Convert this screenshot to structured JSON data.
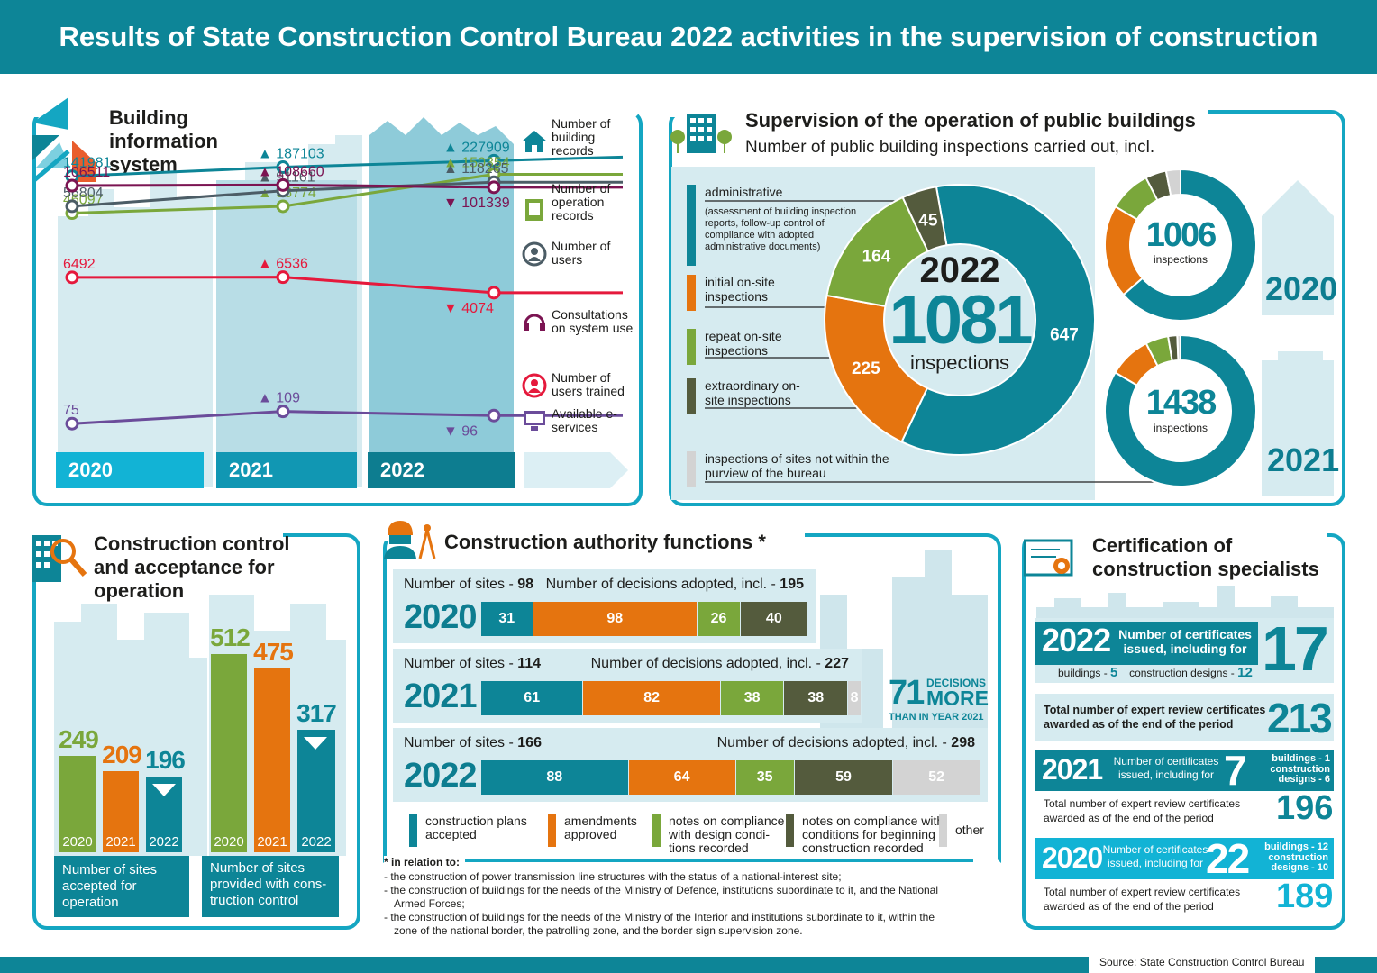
{
  "title": "Results of State Construction Control Bureau 2022 activities in the supervision of construction",
  "colors": {
    "teal": "#0d8597",
    "cyan": "#14a6c2",
    "orange": "#e5740f",
    "green": "#7aa73b",
    "dark": "#545b3d",
    "gray": "#d3d3d3",
    "magenta": "#7b1452",
    "slate": "#4c5d66",
    "red": "#e5193c",
    "purple": "#6b4c9a"
  },
  "bis": {
    "heading": "Building information system",
    "years": [
      "2020",
      "2021",
      "2022"
    ],
    "series": [
      {
        "name": "Number of building records",
        "icon": "house-icon",
        "values": [
          141981,
          187103,
          227909
        ],
        "labels": [
          "141981",
          "187103",
          "227909"
        ],
        "arrows": [
          "",
          "up",
          "up"
        ]
      },
      {
        "name": "Number of operation records",
        "icon": "book-icon",
        "values": [
          46097,
          56774,
          150354
        ],
        "labels": [
          "46097",
          "56774",
          "150354"
        ],
        "arrows": [
          "",
          "up",
          "up"
        ]
      },
      {
        "name": "Number of users",
        "icon": "user-icon",
        "values": [
          56804,
          91161,
          118265
        ],
        "labels": [
          "56804",
          "91161",
          "118265"
        ],
        "arrows": [
          "",
          "up",
          "up"
        ]
      },
      {
        "name": "Consultations on system use",
        "icon": "headset-icon",
        "values": [
          106511,
          108660,
          101339
        ],
        "labels": [
          "106511",
          "108660",
          "101339"
        ],
        "arrows": [
          "",
          "up",
          "down"
        ]
      },
      {
        "name": "Number of users trained",
        "icon": "trainee-icon",
        "values": [
          6492,
          6536,
          4074
        ],
        "labels": [
          "6492",
          "6536",
          "4074"
        ],
        "arrows": [
          "",
          "up",
          "down"
        ]
      },
      {
        "name": "Available e-services",
        "icon": "monitor-icon",
        "values": [
          75,
          109,
          96
        ],
        "labels": [
          "75",
          "109",
          "96"
        ],
        "arrows": [
          "",
          "up",
          "down"
        ]
      }
    ]
  },
  "pub": {
    "heading": "Supervision of the operation of public buildings",
    "subheading": "Number of public building inspections carried out, incl.",
    "year": "2022",
    "total": "1081",
    "unit": "inspections",
    "cats": [
      {
        "label": "administrative",
        "sub": "(assessment of building inspection reports, follow-up control of compliance with adopted administrative documents)",
        "value": 647
      },
      {
        "label": "initial on-site inspections",
        "value": 225
      },
      {
        "label": "repeat on-site inspections",
        "value": 164
      },
      {
        "label": "extraordinary on-site inspections",
        "value": 45
      },
      {
        "label": "inspections of sites not within the purview of the bureau",
        "value": 0
      }
    ],
    "small": [
      {
        "year": "2020",
        "total": "1006",
        "unit": "inspections",
        "values": [
          640,
          200,
          90,
          45,
          31
        ]
      },
      {
        "year": "2021",
        "total": "1438",
        "unit": "inspections",
        "values": [
          1200,
          130,
          70,
          28,
          10
        ]
      }
    ]
  },
  "ccao": {
    "heading": "Construction control and acceptance for operation",
    "groups": [
      {
        "caption": "Number of sites accepted for operation",
        "years": [
          "2020",
          "2021",
          "2022"
        ],
        "values": [
          249,
          209,
          196
        ],
        "labels": [
          "249",
          "209",
          "196"
        ],
        "arrow": "down"
      },
      {
        "caption": "Number of sites provided with cons-truction control",
        "years": [
          "2020",
          "2021",
          "2022"
        ],
        "values": [
          512,
          475,
          317
        ],
        "labels": [
          "512",
          "475",
          "317"
        ],
        "arrow": "down"
      }
    ]
  },
  "caf": {
    "heading": "Construction authority functions *",
    "sites_label": "Number of sites - ",
    "dec_label": "Number of decisions adopted, incl. - ",
    "rows": [
      {
        "year": "2020",
        "sites": "98",
        "decisions": "195",
        "values": [
          31,
          98,
          26,
          40,
          0
        ]
      },
      {
        "year": "2021",
        "sites": "114",
        "decisions": "227",
        "values": [
          61,
          82,
          38,
          38,
          8
        ]
      },
      {
        "year": "2022",
        "sites": "166",
        "decisions": "298",
        "values": [
          88,
          64,
          35,
          59,
          52
        ]
      }
    ],
    "delta": {
      "num": "71",
      "word1": "DECISIONS",
      "word2": "MORE",
      "sub": "THAN IN YEAR 2021"
    },
    "legend": [
      "construction plans accepted",
      "amendments approved",
      "notes on compliance with design condi-tions recorded",
      "notes on compliance with conditions for beginning construction recorded",
      "other"
    ],
    "footnote_title": "* in relation to:",
    "footnotes": [
      "the construction of power transmission line structures with the status of a national-interest site;",
      "the construction of buildings for the needs of the Ministry of Defence, institutions subordinate to it, and the National Armed Forces;",
      "the construction of buildings for the needs of the Ministry of the Interior and institutions subordinate to it, within the zone of the national border, the patrolling zone, and the border sign supervision zone."
    ]
  },
  "cert": {
    "heading": "Certification of construction specialists",
    "y2022": {
      "year": "2022",
      "text": "Number of certificates issued, including for",
      "total": "17",
      "b_label": "buildings - ",
      "b": "5",
      "d_label": "construction designs - ",
      "d": "12",
      "review_text": "Total number of expert review certificates awarded as of the end of the period",
      "review": "213"
    },
    "y2021": {
      "year": "2021",
      "text": "Number of certificates issued, including for",
      "total": "7",
      "b": "buildings - 1",
      "d": "construction designs - 6",
      "review_text": "Total number of expert review certificates awarded as of the end of the period",
      "review": "196"
    },
    "y2020": {
      "year": "2020",
      "text": "Number of certificates issued, including for",
      "total": "22",
      "b": "buildings - 12",
      "d": "construction designs - 10",
      "review_text": "Total number of expert review certificates awarded as of the end of the period",
      "review": "189"
    }
  },
  "source": "Source: State Construction Control Bureau",
  "chart_data": [
    {
      "type": "line",
      "title": "Building information system",
      "categories": [
        "2020",
        "2021",
        "2022"
      ],
      "series": [
        {
          "name": "Number of building records",
          "values": [
            141981,
            187103,
            227909
          ]
        },
        {
          "name": "Number of operation records",
          "values": [
            46097,
            56774,
            150354
          ]
        },
        {
          "name": "Number of users",
          "values": [
            56804,
            91161,
            118265
          ]
        },
        {
          "name": "Consultations on system use",
          "values": [
            106511,
            108660,
            101339
          ]
        },
        {
          "name": "Number of users trained",
          "values": [
            6492,
            6536,
            4074
          ]
        },
        {
          "name": "Available e-services",
          "values": [
            75,
            109,
            96
          ]
        }
      ]
    },
    {
      "type": "pie",
      "title": "Number of public building inspections 2022",
      "categories": [
        "administrative",
        "initial on-site inspections",
        "repeat on-site inspections",
        "extraordinary on-site inspections",
        "inspections of sites not within the purview of the bureau"
      ],
      "values": [
        647,
        225,
        164,
        45,
        0
      ]
    },
    {
      "type": "bar",
      "title": "Construction control and acceptance for operation",
      "categories": [
        "2020",
        "2021",
        "2022"
      ],
      "series": [
        {
          "name": "Number of sites accepted for operation",
          "values": [
            249,
            209,
            196
          ]
        },
        {
          "name": "Number of sites provided with construction control",
          "values": [
            512,
            475,
            317
          ]
        }
      ]
    },
    {
      "type": "bar",
      "title": "Construction authority functions",
      "categories": [
        "2020",
        "2021",
        "2022"
      ],
      "series": [
        {
          "name": "construction plans accepted",
          "values": [
            31,
            61,
            88
          ]
        },
        {
          "name": "amendments approved",
          "values": [
            98,
            82,
            64
          ]
        },
        {
          "name": "notes on compliance with design conditions recorded",
          "values": [
            26,
            38,
            35
          ]
        },
        {
          "name": "notes on compliance with conditions for beginning construction recorded",
          "values": [
            40,
            38,
            59
          ]
        },
        {
          "name": "other",
          "values": [
            0,
            8,
            52
          ]
        }
      ]
    }
  ]
}
